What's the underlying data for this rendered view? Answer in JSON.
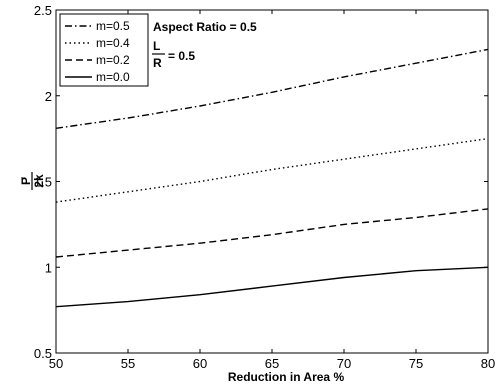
{
  "chart_data": {
    "type": "line",
    "xlabel": "Reduction in Area %",
    "ylabel_numerator": "P",
    "ylabel_denominator": "2k",
    "xlim": [
      50,
      80
    ],
    "ylim": [
      0.5,
      2.5
    ],
    "xticks": [
      50,
      55,
      60,
      65,
      70,
      75,
      80
    ],
    "yticks": [
      0.5,
      1,
      1.5,
      2,
      2.5
    ],
    "ytick_labels": [
      "0.5",
      "1",
      "1.5",
      "2",
      "2.5"
    ],
    "grid": false,
    "legend_position": "top-left",
    "x": [
      50,
      55,
      60,
      65,
      70,
      75,
      80
    ],
    "series": [
      {
        "name": "m=0.5",
        "dash": "dash-dot",
        "values": [
          1.81,
          1.87,
          1.94,
          2.02,
          2.11,
          2.19,
          2.27
        ]
      },
      {
        "name": "m=0.4",
        "dash": "dotted",
        "values": [
          1.38,
          1.44,
          1.5,
          1.57,
          1.63,
          1.69,
          1.75
        ]
      },
      {
        "name": "m=0.2",
        "dash": "dashed",
        "values": [
          1.06,
          1.1,
          1.14,
          1.19,
          1.25,
          1.29,
          1.34
        ]
      },
      {
        "name": "m=0.0",
        "dash": "solid",
        "values": [
          0.77,
          0.8,
          0.84,
          0.89,
          0.94,
          0.98,
          1.0
        ]
      }
    ],
    "annotation": {
      "aspect_ratio": "Aspect Ratio = 0.5",
      "ratio_numerator": "L",
      "ratio_denominator": "R",
      "ratio_value": "= 0.5"
    }
  }
}
